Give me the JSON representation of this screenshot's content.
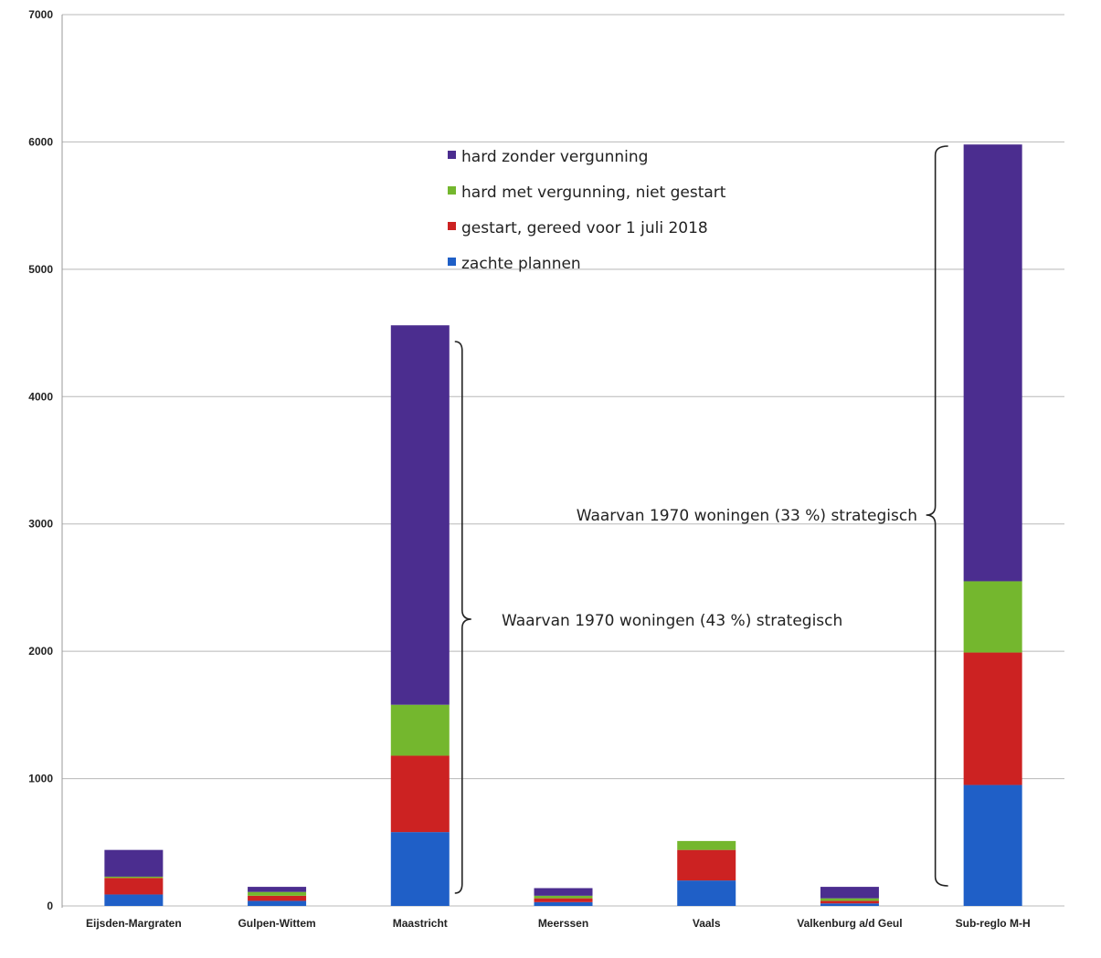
{
  "chart_data": {
    "type": "bar",
    "stacked": true,
    "categories": [
      "Eijsden-Margraten",
      "Gulpen-Wittem",
      "Maastricht",
      "Meerssen",
      "Vaals",
      "Valkenburg a/d Geul",
      "Sub-reglo M-H"
    ],
    "series": [
      {
        "name": "zachte plannen",
        "color": "#1f5fc7",
        "values": [
          90,
          40,
          580,
          30,
          200,
          20,
          950
        ]
      },
      {
        "name": "gestart, gereed voor 1 juli 2018",
        "color": "#cc2222",
        "values": [
          130,
          40,
          600,
          30,
          240,
          20,
          1040
        ]
      },
      {
        "name": "hard met vergunning, niet gestart",
        "color": "#74b72e",
        "values": [
          10,
          30,
          400,
          20,
          70,
          20,
          560
        ]
      },
      {
        "name": "hard zonder vergunning",
        "color": "#4b2d8f",
        "values": [
          210,
          40,
          2980,
          60,
          0,
          90,
          3430
        ]
      }
    ],
    "ylim": [
      0,
      7000
    ],
    "yticks": [
      "0",
      "1000",
      "2000",
      "3000",
      "4000",
      "5000",
      "6000",
      "7000"
    ],
    "grid": true,
    "legend_placement": "top-center",
    "legend_order": [
      "hard zonder vergunning",
      "hard met vergunning, niet gestart",
      "gestart, gereed voor 1 juli 2018",
      "zachte plannen"
    ],
    "annotations": [
      {
        "text": "Waarvan  1970 woningen (43 %) strategisch",
        "category": "Maastricht"
      },
      {
        "text": "Waarvan  1970 woningen (33 %) strategisch",
        "category": "Sub-reglo M-H"
      }
    ]
  }
}
